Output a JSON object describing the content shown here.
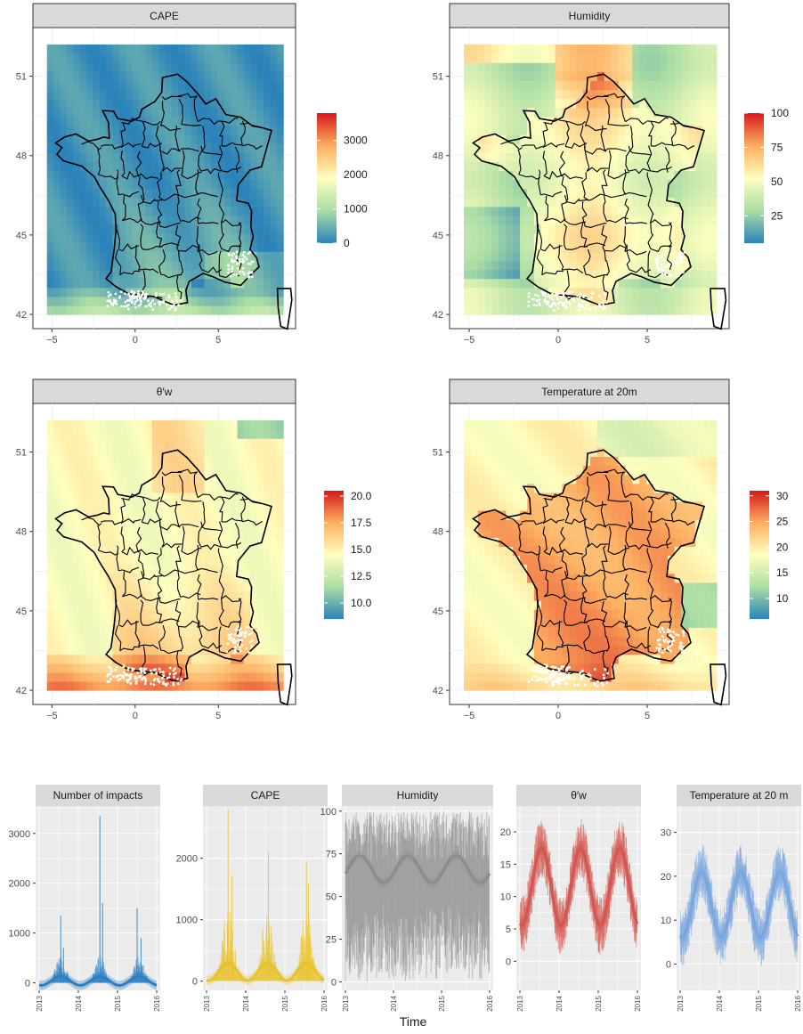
{
  "maps": {
    "panels": [
      {
        "title": "CAPE",
        "legend": {
          "ticks": [
            "3000",
            "2000",
            "1000",
            "0"
          ]
        }
      },
      {
        "title": "Humidity",
        "legend": {
          "ticks": [
            "100",
            "75",
            "50",
            "25"
          ]
        }
      },
      {
        "title": "θ′w",
        "legend": {
          "ticks": [
            "20.0",
            "17.5",
            "15.0",
            "12.5",
            "10.0"
          ]
        }
      },
      {
        "title": "Temperature at 20m",
        "legend": {
          "ticks": [
            "30",
            "25",
            "20",
            "15",
            "10"
          ]
        }
      }
    ],
    "x_ticks": [
      "−5",
      "0",
      "5"
    ],
    "y_ticks": [
      "51",
      "48",
      "45",
      "42"
    ],
    "palette": [
      "#2b83ba",
      "#abdda4",
      "#ffffbf",
      "#fdae61",
      "#d7191c"
    ]
  },
  "timeseries": {
    "x_label": "Time",
    "x_ticks": [
      "2013",
      "2014",
      "2015",
      "2016"
    ],
    "panels": [
      {
        "title": "Number of impacts",
        "color": "#2a7fc4",
        "y_ticks": [
          "3000",
          "2000",
          "1000",
          "0"
        ]
      },
      {
        "title": "CAPE",
        "color": "#e8c22a",
        "y_ticks": [
          "2000",
          "1000",
          "0"
        ]
      },
      {
        "title": "Humidity",
        "color": "#8c8c8c",
        "y_ticks": [
          "100",
          "75",
          "50",
          "25",
          "0"
        ]
      },
      {
        "title": "θ′w",
        "color": "#d4574f",
        "y_ticks": [
          "20",
          "15",
          "10",
          "5",
          "0"
        ]
      },
      {
        "title": "Temperature at 20 m",
        "color": "#7aa6de",
        "y_ticks": [
          "30",
          "20",
          "10",
          "0"
        ]
      }
    ]
  },
  "chart_data": [
    {
      "type": "heatmap",
      "title": "CAPE",
      "x_range": [
        -5.5,
        9
      ],
      "y_range": [
        41.8,
        52.5
      ],
      "color_range": [
        0,
        3800
      ],
      "legend_ticks": [
        0,
        1000,
        2000,
        3000
      ]
    },
    {
      "type": "heatmap",
      "title": "Humidity",
      "x_range": [
        -5.5,
        9
      ],
      "y_range": [
        41.8,
        52.5
      ],
      "color_range": [
        5,
        100
      ],
      "legend_ticks": [
        25,
        50,
        75,
        100
      ]
    },
    {
      "type": "heatmap",
      "title": "θ′w",
      "x_range": [
        -5.5,
        9
      ],
      "y_range": [
        41.8,
        52.5
      ],
      "color_range": [
        8.5,
        20.5
      ],
      "legend_ticks": [
        10.0,
        12.5,
        15.0,
        17.5,
        20.0
      ]
    },
    {
      "type": "heatmap",
      "title": "Temperature at 20m",
      "x_range": [
        -5.5,
        9
      ],
      "y_range": [
        41.8,
        52.5
      ],
      "color_range": [
        6,
        31
      ],
      "legend_ticks": [
        10,
        15,
        20,
        25,
        30
      ]
    },
    {
      "type": "line",
      "title": "Number of impacts",
      "x_range": [
        2013,
        2016
      ],
      "ylim": [
        -150,
        3550
      ],
      "smooth": {
        "base": 40,
        "amplitude": 90,
        "peak_phase": 0.55
      },
      "spikes": [
        [
          2013.55,
          1350
        ],
        [
          2013.62,
          700
        ],
        [
          2014.55,
          3350
        ],
        [
          2014.62,
          1600
        ],
        [
          2015.5,
          1500
        ],
        [
          2015.6,
          900
        ]
      ]
    },
    {
      "type": "line",
      "title": "CAPE",
      "x_range": [
        2013,
        2016
      ],
      "ylim": [
        -150,
        2850
      ],
      "smooth": {
        "base": 150,
        "amplitude": 140,
        "peak_phase": 0.55
      },
      "spikes": [
        [
          2013.55,
          2800
        ],
        [
          2013.65,
          1700
        ],
        [
          2014.58,
          2100
        ],
        [
          2015.55,
          1950
        ],
        [
          2015.6,
          1600
        ]
      ]
    },
    {
      "type": "line",
      "title": "Humidity",
      "x_range": [
        2013,
        2016
      ],
      "ylim": [
        -5,
        103
      ],
      "smooth": {
        "base": 66,
        "amplitude": 8,
        "peak_phase": 0.3
      },
      "band": [
        0,
        100
      ]
    },
    {
      "type": "line",
      "title": "θ′w",
      "x_range": [
        2013,
        2016
      ],
      "ylim": [
        -4.5,
        24
      ],
      "smooth": {
        "base": 11.5,
        "amplitude": 6.0,
        "peak_phase": 0.55
      },
      "noise": 3.5
    },
    {
      "type": "line",
      "title": "Temperature at 20 m",
      "x_range": [
        2013,
        2016
      ],
      "ylim": [
        -6,
        36
      ],
      "smooth": {
        "base": 13.5,
        "amplitude": 7.5,
        "peak_phase": 0.55
      },
      "noise": 5
    }
  ]
}
